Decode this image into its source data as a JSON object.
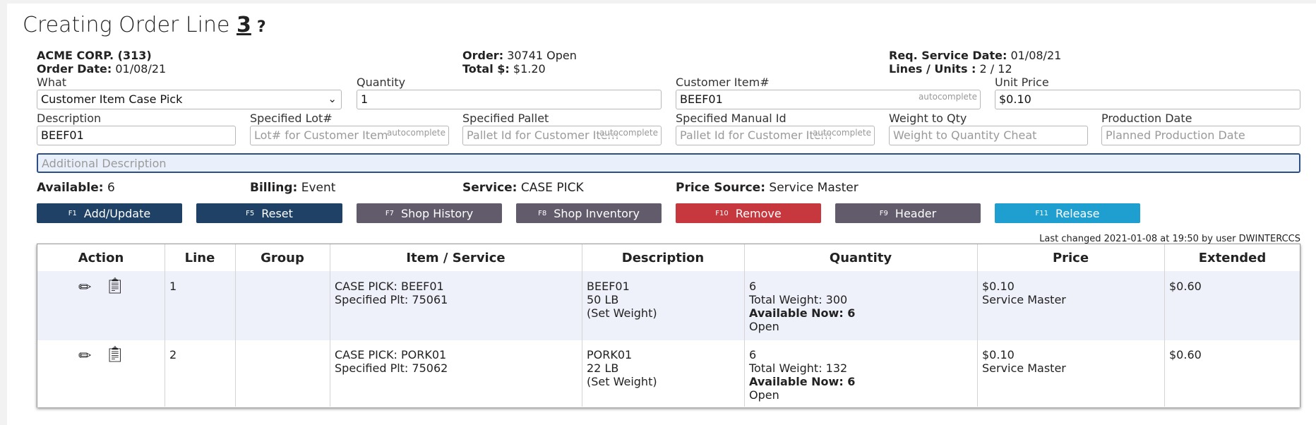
{
  "page": {
    "title_prefix": "Creating Order Line",
    "line_number": "3",
    "help": "?"
  },
  "header": {
    "customer": "ACME CORP. (313)",
    "order_date_label": "Order Date:",
    "order_date": "01/08/21",
    "order_label": "Order:",
    "order": "30741 Open",
    "total_label": "Total $:",
    "total": "$1.20",
    "req_label": "Req. Service Date:",
    "req_date": "01/08/21",
    "lines_label": "Lines / Units :",
    "lines": "2 / 12"
  },
  "form": {
    "what_label": "What",
    "what_value": "Customer Item Case Pick",
    "qty_label": "Quantity",
    "qty_value": "1",
    "custitem_label": "Customer Item#",
    "custitem_value": "BEEF01",
    "unitprice_label": "Unit Price",
    "unitprice_value": "$0.10",
    "desc_label": "Description",
    "desc_value": "BEEF01",
    "lot_label": "Specified Lot#",
    "lot_placeholder": "Lot# for Customer Item",
    "pallet_label": "Specified Pallet",
    "pallet_placeholder": "Pallet Id for Customer Item",
    "manual_label": "Specified Manual Id",
    "manual_placeholder": "Pallet Id for Customer Item",
    "weight_label": "Weight to Qty",
    "weight_placeholder": "Weight to Quantity Cheat",
    "prod_label": "Production Date",
    "prod_placeholder": "Planned Production Date",
    "adddesc_placeholder": "Additional Description",
    "autocomplete": "autocomplete"
  },
  "status": {
    "available_label": "Available:",
    "available": "6",
    "billing_label": "Billing:",
    "billing": "Event",
    "service_label": "Service:",
    "service": "CASE PICK",
    "pricesrc_label": "Price Source:",
    "pricesrc": "Service Master"
  },
  "buttons": {
    "add": {
      "key": "F1",
      "label": "Add/Update"
    },
    "reset": {
      "key": "F5",
      "label": "Reset"
    },
    "history": {
      "key": "F7",
      "label": "Shop History"
    },
    "inventory": {
      "key": "F8",
      "label": "Shop Inventory"
    },
    "remove": {
      "key": "F10",
      "label": "Remove"
    },
    "header": {
      "key": "F9",
      "label": "Header"
    },
    "release": {
      "key": "F11",
      "label": "Release"
    }
  },
  "last_changed": "Last changed 2021-01-08 at 19:50 by user DWINTERCCS",
  "table": {
    "headers": [
      "Action",
      "Line",
      "Group",
      "Item / Service",
      "Description",
      "Quantity",
      "Price",
      "Extended"
    ],
    "rows": [
      {
        "line": "1",
        "group": "",
        "item1": "CASE PICK: BEEF01",
        "item2": "Specified Plt: 75061",
        "desc1": "BEEF01",
        "desc2": "50 LB",
        "desc3": "(Set Weight)",
        "qty1": "6",
        "qty2": "Total Weight: 300",
        "qty3": "Available Now: 6",
        "qty4": "Open",
        "price1": "$0.10",
        "price2": "Service Master",
        "extended": "$0.60"
      },
      {
        "line": "2",
        "group": "",
        "item1": "CASE PICK: PORK01",
        "item2": "Specified Plt: 75062",
        "desc1": "PORK01",
        "desc2": "22 LB",
        "desc3": "(Set Weight)",
        "qty1": "6",
        "qty2": "Total Weight: 132",
        "qty3": "Available Now: 6",
        "qty4": "Open",
        "price1": "$0.10",
        "price2": "Service Master",
        "extended": "$0.60"
      }
    ]
  },
  "icons": {
    "edit": "pencil-icon",
    "copy": "clipboard-icon"
  },
  "colors": {
    "primary": "#1e4165",
    "secondary": "#625b6b",
    "danger": "#c7373e",
    "info": "#1f9fcf"
  }
}
